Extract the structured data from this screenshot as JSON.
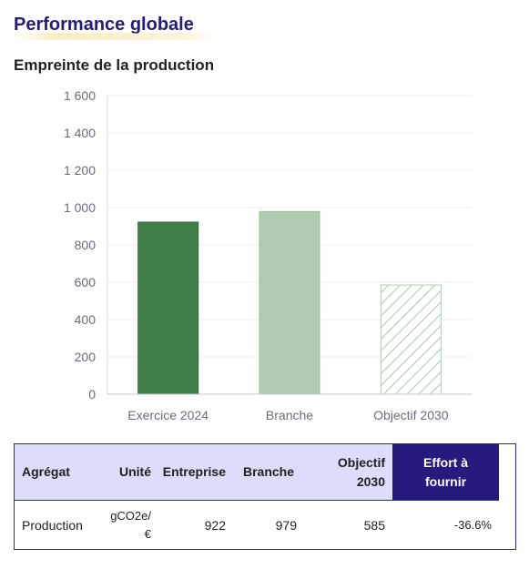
{
  "header": {
    "title": "Performance globale",
    "section": "Empreinte de la production"
  },
  "colors": {
    "title": "#241c7a",
    "bar_exercice": "#417f49",
    "bar_branche": "#b0cbb2",
    "bar_objectif_hatch": "#b0cbb2",
    "table_header": "#dcdcfb",
    "table_effort_header": "#251b7e"
  },
  "chart_data": {
    "type": "bar",
    "title": "",
    "xlabel": "",
    "ylabel": "",
    "categories": [
      "Exercice 2024",
      "Branche",
      "Objectif 2030"
    ],
    "values": [
      922,
      979,
      585
    ],
    "styles": [
      "solid-dark-green",
      "solid-light-green",
      "hatched-light-green"
    ],
    "ylim": [
      0,
      1600
    ],
    "yticks": [
      0,
      200,
      400,
      600,
      800,
      1000,
      1200,
      1400,
      1600
    ],
    "ytick_labels": [
      "0",
      "200",
      "400",
      "600",
      "800",
      "1 000",
      "1 200",
      "1 400",
      "1 600"
    ],
    "grid": true
  },
  "table": {
    "headers": {
      "agregat": "Agrégat",
      "unite": "Unité",
      "entreprise": "Entreprise",
      "branche": "Branche",
      "objectif_line1": "Objectif",
      "objectif_line2": "2030",
      "effort_line1": "Effort à",
      "effort_line2": "fournir"
    },
    "row": {
      "agregat": "Production",
      "unite_line1": "gCO2e/",
      "unite_line2": "€",
      "entreprise": "922",
      "branche": "979",
      "objectif": "585",
      "effort": "-36.6%"
    }
  }
}
